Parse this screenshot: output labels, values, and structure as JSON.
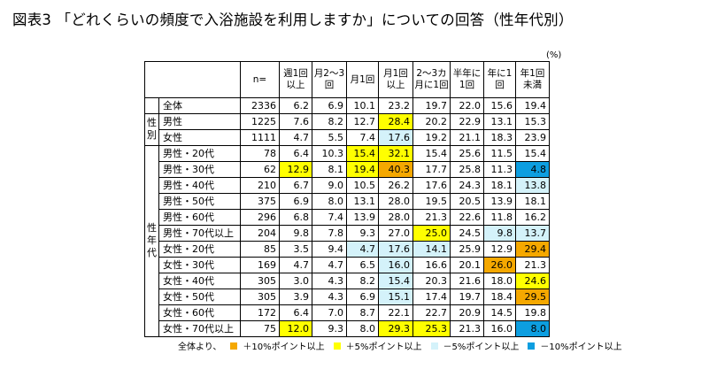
{
  "title": "図表3 「どれくらいの頻度で入浴施設を利用しますか」についての回答（性年代別）",
  "unit": "(%)",
  "colors": {
    "plus10": "#f5a800",
    "plus5": "#ffff00",
    "minus5": "#d4f2fa",
    "minus10": "#0d9ee0"
  },
  "headers": [
    "n=",
    "週1回\n以上",
    "月2～3\n回",
    "月1回",
    "月1回\n以上",
    "2～3カ\n月に1回",
    "半年に\n1回",
    "年に1\n回",
    "年1回\n未満"
  ],
  "groups": {
    "gender": "性別",
    "age": "性年代"
  },
  "rows": [
    {
      "group": "",
      "label": "全体",
      "n": "2336",
      "v": [
        "6.2",
        "6.9",
        "10.1",
        "23.2",
        "19.7",
        "22.0",
        "15.6",
        "19.4"
      ],
      "c": [
        "",
        "",
        "",
        "",
        "",
        "",
        "",
        ""
      ]
    },
    {
      "group": "gender",
      "label": "男性",
      "n": "1225",
      "v": [
        "7.6",
        "8.2",
        "12.7",
        "28.4",
        "20.2",
        "22.9",
        "13.1",
        "15.3"
      ],
      "c": [
        "",
        "",
        "",
        "p5",
        "",
        "",
        "",
        ""
      ]
    },
    {
      "group": "gender",
      "label": "女性",
      "n": "1111",
      "v": [
        "4.7",
        "5.5",
        "7.4",
        "17.6",
        "19.2",
        "21.1",
        "18.3",
        "23.9"
      ],
      "c": [
        "",
        "",
        "",
        "m5",
        "",
        "",
        "",
        ""
      ]
    },
    {
      "group": "age",
      "label": "男性・20代",
      "n": "78",
      "v": [
        "6.4",
        "10.3",
        "15.4",
        "32.1",
        "15.4",
        "25.6",
        "11.5",
        "15.4"
      ],
      "c": [
        "",
        "",
        "p5",
        "p5",
        "",
        "",
        "",
        ""
      ]
    },
    {
      "group": "age",
      "label": "男性・30代",
      "n": "62",
      "v": [
        "12.9",
        "8.1",
        "19.4",
        "40.3",
        "17.7",
        "25.8",
        "11.3",
        "4.8"
      ],
      "c": [
        "p5",
        "",
        "p5",
        "p10",
        "",
        "",
        "",
        "m10"
      ]
    },
    {
      "group": "age",
      "label": "男性・40代",
      "n": "210",
      "v": [
        "6.7",
        "9.0",
        "10.5",
        "26.2",
        "17.6",
        "24.3",
        "18.1",
        "13.8"
      ],
      "c": [
        "",
        "",
        "",
        "",
        "",
        "",
        "",
        "m5"
      ]
    },
    {
      "group": "age",
      "label": "男性・50代",
      "n": "375",
      "v": [
        "6.9",
        "8.0",
        "13.1",
        "28.0",
        "19.5",
        "20.5",
        "13.9",
        "18.1"
      ],
      "c": [
        "",
        "",
        "",
        "",
        "",
        "",
        "",
        ""
      ]
    },
    {
      "group": "age",
      "label": "男性・60代",
      "n": "296",
      "v": [
        "6.8",
        "7.4",
        "13.9",
        "28.0",
        "21.3",
        "22.6",
        "11.8",
        "16.2"
      ],
      "c": [
        "",
        "",
        "",
        "",
        "",
        "",
        "",
        ""
      ]
    },
    {
      "group": "age",
      "label": "男性・70代以上",
      "n": "204",
      "v": [
        "9.8",
        "7.8",
        "9.3",
        "27.0",
        "25.0",
        "24.5",
        "9.8",
        "13.7"
      ],
      "c": [
        "",
        "",
        "",
        "",
        "p5",
        "",
        "m5",
        "m5"
      ]
    },
    {
      "group": "age",
      "label": "女性・20代",
      "n": "85",
      "v": [
        "3.5",
        "9.4",
        "4.7",
        "17.6",
        "14.1",
        "25.9",
        "12.9",
        "29.4"
      ],
      "c": [
        "",
        "",
        "m5",
        "m5",
        "m5",
        "",
        "",
        "p10"
      ]
    },
    {
      "group": "age",
      "label": "女性・30代",
      "n": "169",
      "v": [
        "4.7",
        "4.7",
        "6.5",
        "16.0",
        "16.6",
        "20.1",
        "26.0",
        "21.3"
      ],
      "c": [
        "",
        "",
        "",
        "m5",
        "",
        "",
        "p10",
        ""
      ]
    },
    {
      "group": "age",
      "label": "女性・40代",
      "n": "305",
      "v": [
        "3.0",
        "4.3",
        "8.2",
        "15.4",
        "20.3",
        "21.6",
        "18.0",
        "24.6"
      ],
      "c": [
        "",
        "",
        "",
        "m5",
        "",
        "",
        "",
        "p5"
      ]
    },
    {
      "group": "age",
      "label": "女性・50代",
      "n": "305",
      "v": [
        "3.9",
        "4.3",
        "6.9",
        "15.1",
        "17.4",
        "19.7",
        "18.4",
        "29.5"
      ],
      "c": [
        "",
        "",
        "",
        "m5",
        "",
        "",
        "",
        "p10"
      ]
    },
    {
      "group": "age",
      "label": "女性・60代",
      "n": "172",
      "v": [
        "6.4",
        "7.0",
        "8.7",
        "22.1",
        "22.7",
        "20.9",
        "14.5",
        "19.8"
      ],
      "c": [
        "",
        "",
        "",
        "",
        "",
        "",
        "",
        ""
      ]
    },
    {
      "group": "age",
      "label": "女性・70代以上",
      "n": "75",
      "v": [
        "12.0",
        "9.3",
        "8.0",
        "29.3",
        "25.3",
        "21.3",
        "16.0",
        "8.0"
      ],
      "c": [
        "p5",
        "",
        "",
        "p5",
        "p5",
        "",
        "",
        "m10"
      ]
    }
  ],
  "legend": {
    "prefix": "全体より、",
    "items": [
      {
        "key": "p10",
        "text": "＋10%ポイント以上"
      },
      {
        "key": "p5",
        "text": "＋5%ポイント以上"
      },
      {
        "key": "m5",
        "text": "－5%ポイント以上"
      },
      {
        "key": "m10",
        "text": "－10%ポイント以上"
      }
    ]
  }
}
